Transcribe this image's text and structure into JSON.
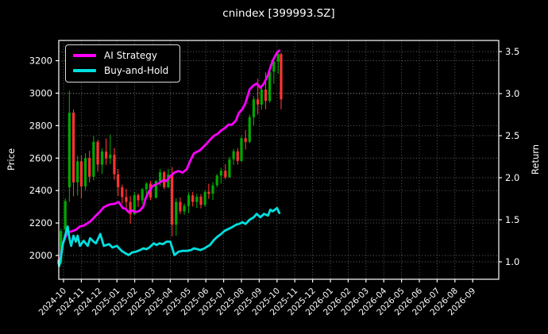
{
  "chart": {
    "title": "cnindex [399993.SZ]",
    "left_axis_label": "Price",
    "right_axis_label": "Return",
    "legend": [
      {
        "label": "AI Strategy",
        "color": "#ff00ff"
      },
      {
        "label": "Buy-and-Hold",
        "color": "#00e0e0"
      }
    ],
    "colors": {
      "background": "#000000",
      "text": "#ffffff",
      "grid": "#8a8a8a",
      "frame": "#ffffff",
      "candle_up": "#00a800",
      "candle_down": "#ff3333",
      "strategy": "#ff00ff",
      "buy_hold": "#00e0e0"
    }
  },
  "chart_data": {
    "type": "candlestick+line",
    "title": "cnindex [399993.SZ]",
    "xlabel": "",
    "price_axis": {
      "label": "Price",
      "ticks": [
        2000,
        2200,
        2400,
        2600,
        2800,
        3000,
        3200
      ],
      "range": [
        1824,
        3330
      ]
    },
    "return_axis": {
      "label": "Return",
      "ticks": [
        1.0,
        1.5,
        2.0,
        2.5,
        3.0,
        3.5
      ],
      "range": [
        0.79,
        3.63
      ]
    },
    "x_tick_labels": [
      "2024-10",
      "2024-11",
      "2024-12",
      "2025-01",
      "2025-02",
      "2025-03",
      "2025-04",
      "2025-05",
      "2025-06",
      "2025-07",
      "2025-08",
      "2025-09",
      "2025-10",
      "2025-11",
      "2025-12",
      "2026-01",
      "2026-02",
      "2026-03",
      "2026-04",
      "2026-05",
      "2026-06",
      "2026-07",
      "2026-08",
      "2026-09"
    ],
    "grid": "dotted, both price and return gridlines, legend upper-left",
    "candles": [
      [
        "2024-09-23",
        1975,
        1995,
        1930,
        1950
      ],
      [
        "2024-09-27",
        1955,
        2165,
        1945,
        2150
      ],
      [
        "2024-10-04",
        2160,
        2350,
        2140,
        2335
      ],
      [
        "2024-10-11",
        2420,
        3015,
        2330,
        2880
      ],
      [
        "2024-10-18",
        2880,
        2900,
        2365,
        2450
      ],
      [
        "2024-10-25",
        2450,
        2615,
        2370,
        2580
      ],
      [
        "2024-11-01",
        2580,
        2615,
        2350,
        2425
      ],
      [
        "2024-11-08",
        2425,
        2630,
        2400,
        2600
      ],
      [
        "2024-11-15",
        2600,
        2645,
        2450,
        2485
      ],
      [
        "2024-11-22",
        2485,
        2735,
        2462,
        2700
      ],
      [
        "2024-11-29",
        2700,
        2712,
        2516,
        2560
      ],
      [
        "2024-12-06",
        2560,
        2660,
        2502,
        2640
      ],
      [
        "2024-12-13",
        2640,
        2722,
        2558,
        2598
      ],
      [
        "2024-12-20",
        2598,
        2745,
        2563,
        2620
      ],
      [
        "2024-12-27",
        2620,
        2662,
        2466,
        2500
      ],
      [
        "2025-01-03",
        2500,
        2532,
        2367,
        2420
      ],
      [
        "2025-01-10",
        2420,
        2436,
        2320,
        2360
      ],
      [
        "2025-01-17",
        2360,
        2411,
        2294,
        2330
      ],
      [
        "2025-01-24",
        2330,
        2367,
        2196,
        2255
      ],
      [
        "2025-01-31",
        2255,
        2390,
        2250,
        2372
      ],
      [
        "2025-02-07",
        2372,
        2382,
        2300,
        2340
      ],
      [
        "2025-02-14",
        2340,
        2416,
        2318,
        2408
      ],
      [
        "2025-02-21",
        2408,
        2452,
        2350,
        2442
      ],
      [
        "2025-02-28",
        2442,
        2460,
        2340,
        2356
      ],
      [
        "2025-03-07",
        2356,
        2465,
        2350,
        2458
      ],
      [
        "2025-03-14",
        2458,
        2534,
        2428,
        2512
      ],
      [
        "2025-03-21",
        2512,
        2522,
        2408,
        2420
      ],
      [
        "2025-03-28",
        2420,
        2534,
        2414,
        2498
      ],
      [
        "2025-04-04",
        2498,
        2545,
        2117,
        2190
      ],
      [
        "2025-04-11",
        2190,
        2352,
        2122,
        2330
      ],
      [
        "2025-04-18",
        2330,
        2358,
        2255,
        2272
      ],
      [
        "2025-04-25",
        2272,
        2320,
        2250,
        2305
      ],
      [
        "2025-05-02",
        2305,
        2387,
        2262,
        2370
      ],
      [
        "2025-05-09",
        2370,
        2392,
        2302,
        2330
      ],
      [
        "2025-05-16",
        2330,
        2380,
        2292,
        2362
      ],
      [
        "2025-05-23",
        2362,
        2378,
        2290,
        2312
      ],
      [
        "2025-05-30",
        2312,
        2402,
        2300,
        2392
      ],
      [
        "2025-06-06",
        2392,
        2442,
        2348,
        2380
      ],
      [
        "2025-06-13",
        2380,
        2452,
        2342,
        2432
      ],
      [
        "2025-06-20",
        2432,
        2502,
        2420,
        2492
      ],
      [
        "2025-06-27",
        2492,
        2540,
        2442,
        2522
      ],
      [
        "2025-07-04",
        2522,
        2562,
        2470,
        2482
      ],
      [
        "2025-07-11",
        2482,
        2608,
        2478,
        2592
      ],
      [
        "2025-07-18",
        2592,
        2656,
        2558,
        2642
      ],
      [
        "2025-07-25",
        2642,
        2662,
        2560,
        2582
      ],
      [
        "2025-08-01",
        2582,
        2736,
        2576,
        2722
      ],
      [
        "2025-08-08",
        2722,
        2772,
        2652,
        2700
      ],
      [
        "2025-08-15",
        2700,
        2868,
        2692,
        2852
      ],
      [
        "2025-08-22",
        2852,
        2982,
        2800,
        2962
      ],
      [
        "2025-08-29",
        2962,
        3088,
        2868,
        2930
      ],
      [
        "2025-09-05",
        2930,
        3050,
        2898,
        3022
      ],
      [
        "2025-09-12",
        3022,
        3128,
        2900,
        2952
      ],
      [
        "2025-09-19",
        2952,
        3162,
        2940,
        3132
      ],
      [
        "2025-09-26",
        3132,
        3220,
        3058,
        3195
      ],
      [
        "2025-10-03",
        3195,
        3258,
        3120,
        3240
      ],
      [
        "2025-10-08",
        3240,
        3250,
        2900,
        2962
      ]
    ],
    "series": [
      {
        "name": "AI Strategy",
        "axis": "return",
        "color": "#ff00ff",
        "dates": [
          "2024-09-23",
          "2024-09-24",
          "2024-09-27",
          "2024-09-30",
          "2024-10-08",
          "2024-10-14",
          "2024-10-22",
          "2024-10-29",
          "2024-11-05",
          "2024-11-12",
          "2024-11-18",
          "2024-11-26",
          "2024-12-03",
          "2024-12-09",
          "2024-12-18",
          "2024-12-27",
          "2025-01-04",
          "2025-01-11",
          "2025-01-16",
          "2025-01-21",
          "2025-01-27",
          "2025-02-03",
          "2025-02-10",
          "2025-02-16",
          "2025-02-19",
          "2025-02-24",
          "2025-03-01",
          "2025-03-07",
          "2025-03-13",
          "2025-03-19",
          "2025-03-25",
          "2025-04-01",
          "2025-04-08",
          "2025-04-15",
          "2025-04-22",
          "2025-04-29",
          "2025-05-06",
          "2025-05-11",
          "2025-05-17",
          "2025-05-22",
          "2025-05-29",
          "2025-06-03",
          "2025-06-08",
          "2025-06-15",
          "2025-06-21",
          "2025-06-27",
          "2025-07-03",
          "2025-07-09",
          "2025-07-15",
          "2025-07-22",
          "2025-07-27",
          "2025-08-03",
          "2025-08-08",
          "2025-08-15",
          "2025-08-22",
          "2025-08-27",
          "2025-09-03",
          "2025-09-09",
          "2025-09-16",
          "2025-09-20",
          "2025-09-24",
          "2025-10-01",
          "2025-10-05"
        ],
        "values": [
          1.0,
          0.96,
          1.08,
          1.22,
          1.35,
          1.36,
          1.38,
          1.42,
          1.43,
          1.46,
          1.49,
          1.55,
          1.6,
          1.65,
          1.68,
          1.69,
          1.71,
          1.64,
          1.63,
          1.59,
          1.61,
          1.59,
          1.61,
          1.66,
          1.74,
          1.82,
          1.9,
          1.92,
          1.94,
          1.97,
          1.96,
          2.02,
          2.06,
          2.08,
          2.06,
          2.1,
          2.22,
          2.29,
          2.31,
          2.33,
          2.38,
          2.41,
          2.45,
          2.5,
          2.52,
          2.56,
          2.59,
          2.63,
          2.63,
          2.68,
          2.77,
          2.82,
          2.89,
          3.05,
          3.1,
          3.12,
          3.07,
          3.12,
          3.22,
          3.31,
          3.39,
          3.49,
          3.51
        ]
      },
      {
        "name": "Buy-and-Hold",
        "axis": "return",
        "color": "#00e0e0",
        "dates": [
          "2024-09-23",
          "2024-09-24",
          "2024-09-27",
          "2024-09-30",
          "2024-10-08",
          "2024-10-11",
          "2024-10-14",
          "2024-10-18",
          "2024-10-22",
          "2024-10-25",
          "2024-10-29",
          "2024-11-05",
          "2024-11-12",
          "2024-11-16",
          "2024-11-22",
          "2024-11-26",
          "2024-12-03",
          "2024-12-09",
          "2024-12-18",
          "2024-12-24",
          "2025-01-01",
          "2025-01-09",
          "2025-01-16",
          "2025-01-21",
          "2025-01-27",
          "2025-02-03",
          "2025-02-10",
          "2025-02-16",
          "2025-02-21",
          "2025-02-26",
          "2025-03-03",
          "2025-03-08",
          "2025-03-13",
          "2025-03-19",
          "2025-03-25",
          "2025-04-01",
          "2025-04-08",
          "2025-04-15",
          "2025-04-22",
          "2025-04-29",
          "2025-05-06",
          "2025-05-11",
          "2025-05-17",
          "2025-05-22",
          "2025-05-29",
          "2025-06-03",
          "2025-06-08",
          "2025-06-15",
          "2025-06-21",
          "2025-06-27",
          "2025-07-03",
          "2025-07-09",
          "2025-07-15",
          "2025-07-22",
          "2025-07-27",
          "2025-08-03",
          "2025-08-08",
          "2025-08-15",
          "2025-08-22",
          "2025-08-27",
          "2025-09-03",
          "2025-09-09",
          "2025-09-16",
          "2025-09-20",
          "2025-09-24",
          "2025-10-01",
          "2025-10-05"
        ],
        "values": [
          1.0,
          0.95,
          1.05,
          1.2,
          1.42,
          1.28,
          1.19,
          1.31,
          1.24,
          1.31,
          1.19,
          1.25,
          1.19,
          1.28,
          1.24,
          1.22,
          1.33,
          1.19,
          1.21,
          1.17,
          1.19,
          1.13,
          1.1,
          1.08,
          1.11,
          1.12,
          1.14,
          1.16,
          1.15,
          1.17,
          1.22,
          1.2,
          1.22,
          1.21,
          1.24,
          1.24,
          1.08,
          1.12,
          1.13,
          1.13,
          1.14,
          1.16,
          1.15,
          1.14,
          1.16,
          1.18,
          1.2,
          1.26,
          1.3,
          1.33,
          1.37,
          1.39,
          1.41,
          1.44,
          1.45,
          1.47,
          1.45,
          1.5,
          1.53,
          1.57,
          1.53,
          1.57,
          1.55,
          1.62,
          1.6,
          1.64,
          1.58
        ]
      }
    ]
  }
}
